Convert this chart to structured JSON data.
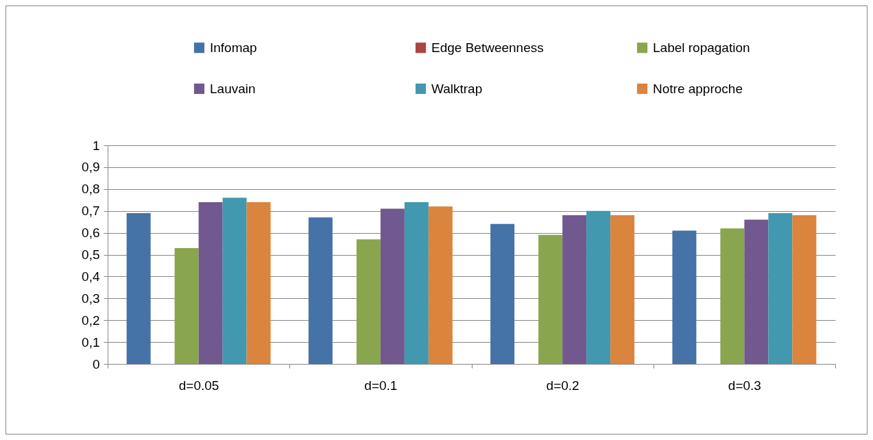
{
  "chart_data": {
    "type": "bar",
    "categories": [
      "d=0.05",
      "d=0.1",
      "d=0.2",
      "d=0.3"
    ],
    "series": [
      {
        "name": "Infomap",
        "color": "#4572a7",
        "values": [
          0.69,
          0.67,
          0.64,
          0.61
        ]
      },
      {
        "name": "Edge Betweenness",
        "color": "#aa4643",
        "values": [
          null,
          null,
          null,
          null
        ]
      },
      {
        "name": "Label ropagation",
        "color": "#89a54e",
        "values": [
          0.53,
          0.57,
          0.59,
          0.62
        ]
      },
      {
        "name": "Lauvain",
        "color": "#71588f",
        "values": [
          0.74,
          0.71,
          0.68,
          0.66
        ]
      },
      {
        "name": "Walktrap",
        "color": "#4198af",
        "values": [
          0.76,
          0.74,
          0.7,
          0.69
        ]
      },
      {
        "name": "Notre approche",
        "color": "#db843d",
        "values": [
          0.74,
          0.72,
          0.68,
          0.68
        ]
      }
    ],
    "ylim": [
      0,
      1
    ],
    "yticks": [
      0,
      {
        "value": 0.1,
        "label": "0,1"
      },
      {
        "value": 0.2,
        "label": "0,2"
      },
      {
        "value": 0.3,
        "label": "0,3"
      },
      {
        "value": 0.4,
        "label": "0,4"
      },
      {
        "value": 0.5,
        "label": "0,5"
      },
      {
        "value": 0.6,
        "label": "0,6"
      },
      {
        "value": 0.7,
        "label": "0,7"
      },
      {
        "value": 0.8,
        "label": "0,8"
      },
      {
        "value": 0.9,
        "label": "0,9"
      },
      1
    ],
    "grid": "y",
    "legend": "top"
  }
}
